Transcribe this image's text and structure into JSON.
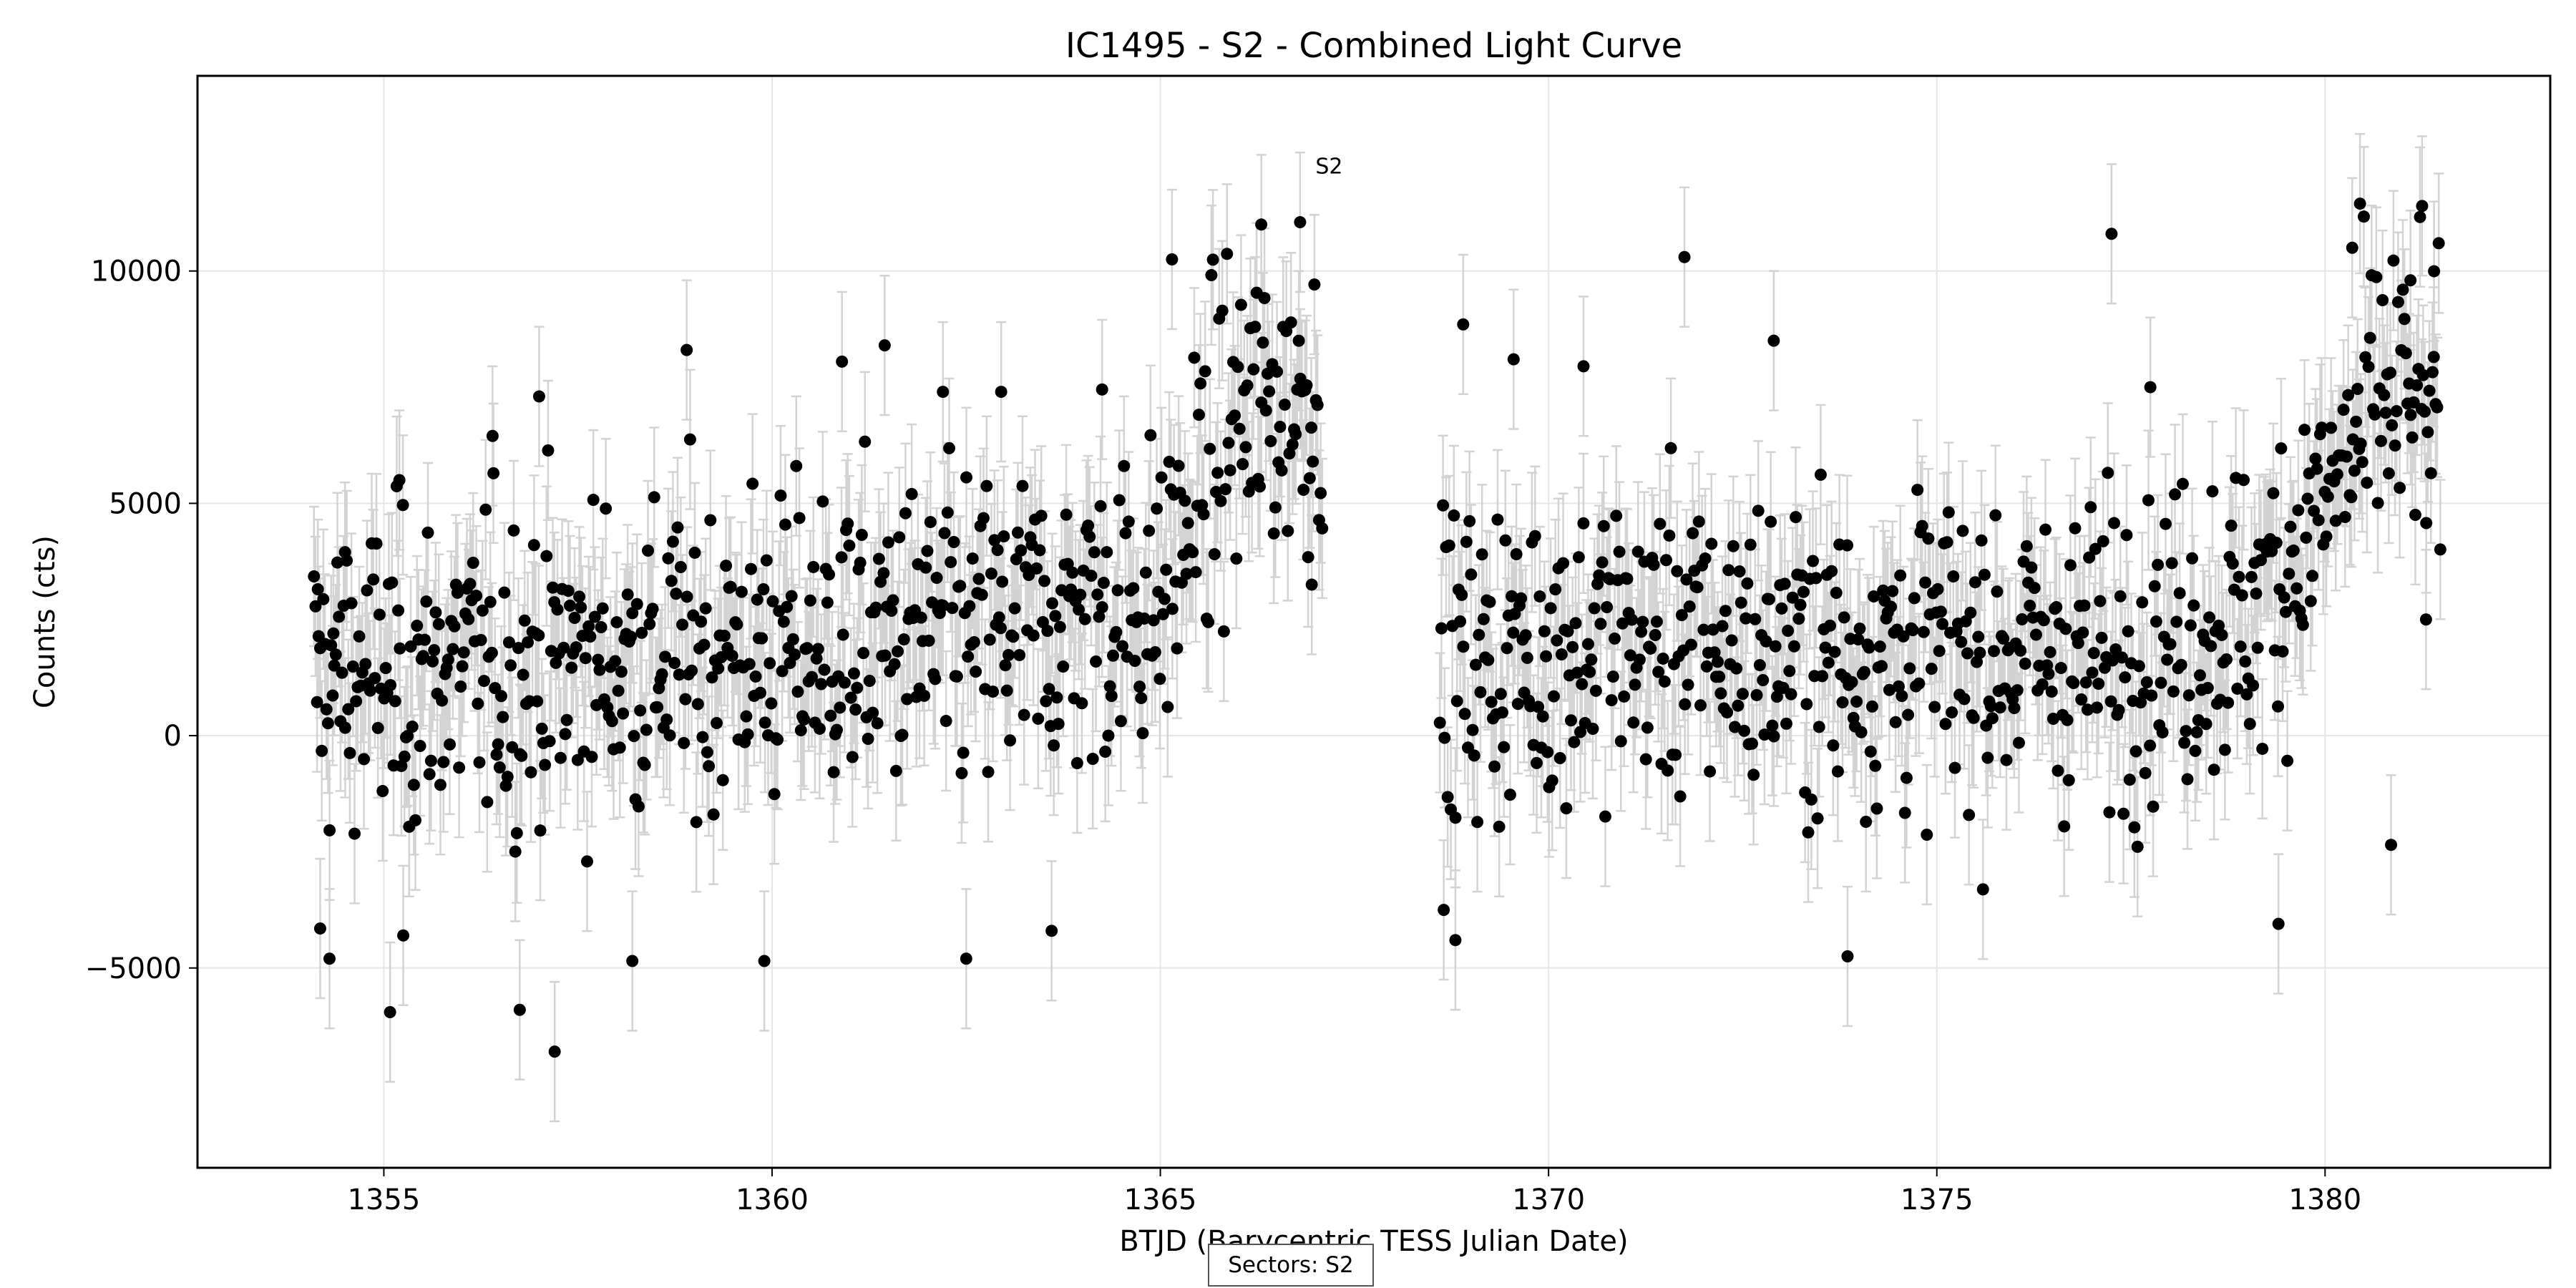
{
  "chart_data": {
    "type": "scatter",
    "title": "IC1495 - S2 - Combined Light Curve",
    "xlabel": "BTJD (Barycentric TESS Julian Date)",
    "ylabel": "Counts (cts)",
    "xlim": [
      1352.6,
      1382.9
    ],
    "ylim": [
      -9300,
      14200
    ],
    "x_ticks": [
      1355,
      1360,
      1365,
      1370,
      1375,
      1380
    ],
    "y_ticks": [
      -5000,
      0,
      5000,
      10000
    ],
    "x_tick_labels": [
      "1355",
      "1360",
      "1365",
      "1370",
      "1375",
      "1380"
    ],
    "y_tick_labels": [
      "−5000",
      "0",
      "5000",
      "10000"
    ],
    "grid": true,
    "error_bars": true,
    "marker_color": "#000000",
    "errorbar_color": "#d3d3d3",
    "annotation": {
      "text": "S2",
      "x": 1366.85,
      "y": 12100
    },
    "segments": [
      {
        "x_start": 1354.1,
        "x_end": 1367.1,
        "step": 0.0201,
        "trend": [
          [
            1354.1,
            1200
          ],
          [
            1357.0,
            1500
          ],
          [
            1360.0,
            1900
          ],
          [
            1363.0,
            2200
          ],
          [
            1365.0,
            3000
          ],
          [
            1365.8,
            6500
          ],
          [
            1367.1,
            7600
          ]
        ],
        "scatter": 2700
      },
      {
        "x_start": 1368.6,
        "x_end": 1381.5,
        "step": 0.0201,
        "trend": [
          [
            1368.6,
            1500
          ],
          [
            1371.0,
            2100
          ],
          [
            1374.0,
            1800
          ],
          [
            1377.0,
            1800
          ],
          [
            1379.0,
            2500
          ],
          [
            1380.0,
            5000
          ],
          [
            1380.8,
            7500
          ],
          [
            1381.5,
            6500
          ]
        ],
        "scatter": 2600
      }
    ],
    "error_half_width": 1500,
    "points": [
      {
        "x": 1354.15,
        "y": 3150
      },
      {
        "x": 1354.18,
        "y": -4150
      },
      {
        "x": 1354.3,
        "y": -4800
      },
      {
        "x": 1354.35,
        "y": 2200
      },
      {
        "x": 1354.5,
        "y": 3950
      },
      {
        "x": 1355.08,
        "y": -5950
      },
      {
        "x": 1355.25,
        "y": -4300
      },
      {
        "x": 1355.2,
        "y": 5500
      },
      {
        "x": 1356.4,
        "y": 6450
      },
      {
        "x": 1356.75,
        "y": -5900
      },
      {
        "x": 1357.2,
        "y": -6800
      },
      {
        "x": 1357.0,
        "y": 7300
      },
      {
        "x": 1358.2,
        "y": -4850
      },
      {
        "x": 1358.9,
        "y": 8300
      },
      {
        "x": 1359.9,
        "y": -4850
      },
      {
        "x": 1360.9,
        "y": 8050
      },
      {
        "x": 1361.45,
        "y": 8400
      },
      {
        "x": 1362.2,
        "y": 7400
      },
      {
        "x": 1362.5,
        "y": -4800
      },
      {
        "x": 1362.95,
        "y": 7400
      },
      {
        "x": 1363.6,
        "y": -4200
      },
      {
        "x": 1364.25,
        "y": 7450
      },
      {
        "x": 1365.15,
        "y": 10250
      },
      {
        "x": 1366.3,
        "y": 11000
      },
      {
        "x": 1366.8,
        "y": 11050
      },
      {
        "x": 1366.95,
        "y": 3250
      },
      {
        "x": 1368.65,
        "y": -3750
      },
      {
        "x": 1368.8,
        "y": -4400
      },
      {
        "x": 1368.9,
        "y": 8850
      },
      {
        "x": 1369.55,
        "y": 8100
      },
      {
        "x": 1370.45,
        "y": 7950
      },
      {
        "x": 1371.75,
        "y": 10300
      },
      {
        "x": 1372.9,
        "y": 8500
      },
      {
        "x": 1373.85,
        "y": -4750
      },
      {
        "x": 1377.25,
        "y": 10800
      },
      {
        "x": 1377.75,
        "y": 7500
      },
      {
        "x": 1379.4,
        "y": -4050
      },
      {
        "x": 1380.35,
        "y": 10500
      },
      {
        "x": 1380.45,
        "y": 11450
      },
      {
        "x": 1380.85,
        "y": -2350
      },
      {
        "x": 1381.1,
        "y": 9800
      },
      {
        "x": 1381.25,
        "y": 11400
      },
      {
        "x": 1381.3,
        "y": 2500
      },
      {
        "x": 1381.4,
        "y": 8150
      }
    ]
  },
  "footer": {
    "text": "Sectors: S2"
  }
}
